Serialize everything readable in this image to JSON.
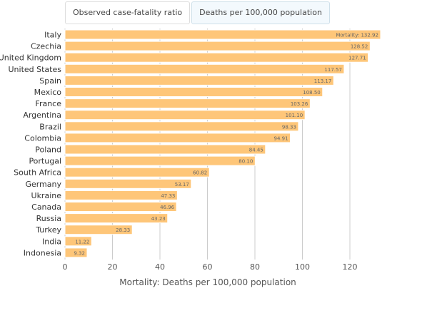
{
  "tabs": [
    {
      "label": "Observed case-fatality ratio",
      "active": false
    },
    {
      "label": "Deaths per 100,000 population",
      "active": true
    }
  ],
  "chart_data": {
    "type": "bar",
    "orientation": "horizontal",
    "categories": [
      "Italy",
      "Czechia",
      "United Kingdom",
      "United States",
      "Spain",
      "Mexico",
      "France",
      "Argentina",
      "Brazil",
      "Colombia",
      "Poland",
      "Portugal",
      "South Africa",
      "Germany",
      "Ukraine",
      "Canada",
      "Russia",
      "Turkey",
      "India",
      "Indonesia"
    ],
    "values": [
      132.92,
      128.52,
      127.71,
      117.57,
      113.17,
      108.5,
      103.26,
      101.1,
      98.33,
      94.91,
      84.45,
      80.1,
      60.82,
      53.17,
      47.33,
      46.96,
      43.23,
      28.33,
      11.22,
      9.32
    ],
    "data_labels": [
      "Mortality: 132.92",
      "128.52",
      "127.71",
      "117.57",
      "113.17",
      "108.50",
      "103.26",
      "101.10",
      "98.33",
      "94.91",
      "84.45",
      "80.10",
      "60.82",
      "53.17",
      "47.33",
      "46.96",
      "43.23",
      "28.33",
      "11.22",
      "9.32"
    ],
    "xlabel": "Mortality: Deaths per 100,000 population",
    "xticks": [
      0,
      20,
      40,
      60,
      80,
      100,
      120
    ],
    "xlim": [
      0,
      135
    ],
    "grid": true,
    "bar_color": "#fec679"
  }
}
